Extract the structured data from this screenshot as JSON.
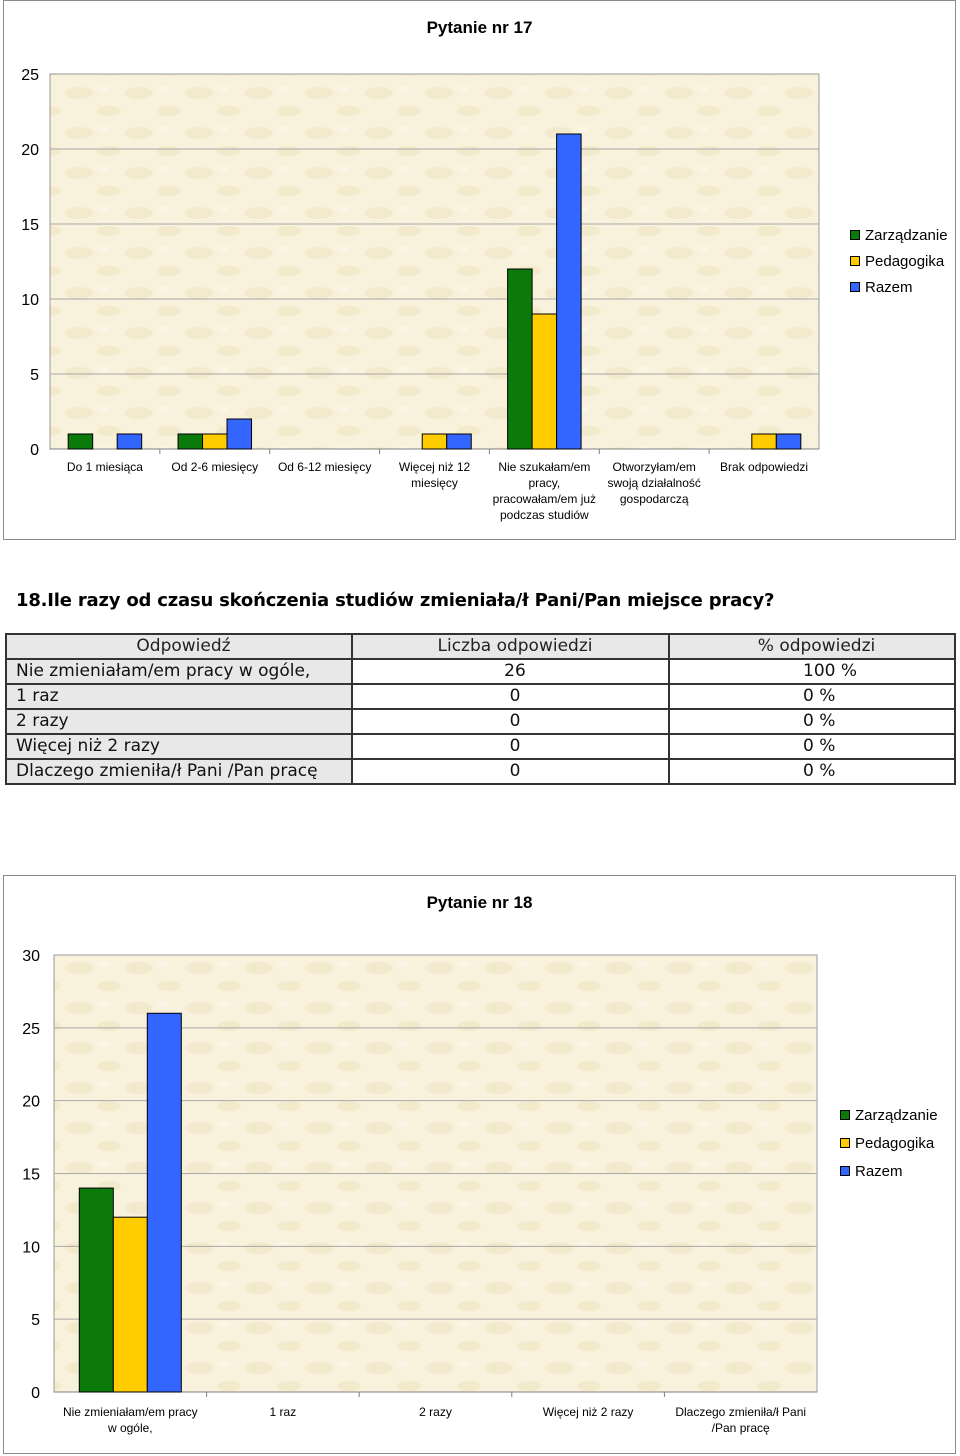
{
  "series_colors": [
    "#0b7a0b",
    "#ffcc00",
    "#3366ff"
  ],
  "chart_data": [
    {
      "type": "bar",
      "title": "Pytanie nr 17",
      "categories": [
        [
          "Do 1 miesiąca"
        ],
        [
          "Od 2-6 miesięcy"
        ],
        [
          "Od 6-12 miesięcy"
        ],
        [
          "Więcej niż 12",
          "miesięcy"
        ],
        [
          "Nie szukałam/em",
          "pracy,",
          "pracowałam/em już",
          "podczas studiów"
        ],
        [
          "Otworzyłam/em",
          "swoją działalność",
          "gospodarczą"
        ],
        [
          "Brak odpowiedzi"
        ]
      ],
      "series": [
        {
          "name": "Zarządzanie",
          "values": [
            1,
            1,
            0,
            0,
            12,
            0,
            0
          ]
        },
        {
          "name": "Pedagogika",
          "values": [
            0,
            1,
            0,
            1,
            9,
            0,
            1
          ]
        },
        {
          "name": "Razem",
          "values": [
            1,
            2,
            0,
            1,
            21,
            0,
            1
          ]
        }
      ],
      "ylim": [
        0,
        25
      ],
      "yticks": [
        0,
        5,
        10,
        15,
        20,
        25
      ],
      "grid": true,
      "legend": "right"
    },
    {
      "type": "bar",
      "title": "Pytanie nr 18",
      "categories": [
        [
          "Nie zmieniałam/em pracy",
          "w ogóle,"
        ],
        [
          "1 raz"
        ],
        [
          "2 razy"
        ],
        [
          "Więcej niż 2 razy"
        ],
        [
          "Dlaczego zmieniła/ł Pani",
          "/Pan pracę"
        ]
      ],
      "series": [
        {
          "name": "Zarządzanie",
          "values": [
            14,
            0,
            0,
            0,
            0
          ]
        },
        {
          "name": "Pedagogika",
          "values": [
            12,
            0,
            0,
            0,
            0
          ]
        },
        {
          "name": "Razem",
          "values": [
            26,
            0,
            0,
            0,
            0
          ]
        }
      ],
      "ylim": [
        0,
        30
      ],
      "yticks": [
        0,
        5,
        10,
        15,
        20,
        25,
        30
      ],
      "grid": true,
      "legend": "right"
    }
  ],
  "section": {
    "heading": "18.Ile razy od czasu skończenia studiów zmieniała/ł Pani/Pan miejsce pracy?"
  },
  "table": {
    "headers": [
      "Odpowiedź",
      "Liczba odpowiedzi",
      "% odpowiedzi"
    ],
    "rows": [
      {
        "answer": "Nie zmieniałam/em pracy w ogóle,",
        "count": "26",
        "percent": "100 %"
      },
      {
        "answer": "1 raz",
        "count": "0",
        "percent": "0 %"
      },
      {
        "answer": "2 razy",
        "count": "0",
        "percent": "0 %"
      },
      {
        "answer": "Więcej niż 2 razy",
        "count": "0",
        "percent": "0 %"
      },
      {
        "answer": "Dlaczego zmieniła/ł Pani /Pan pracę",
        "count": "0",
        "percent": "0 %"
      }
    ]
  }
}
